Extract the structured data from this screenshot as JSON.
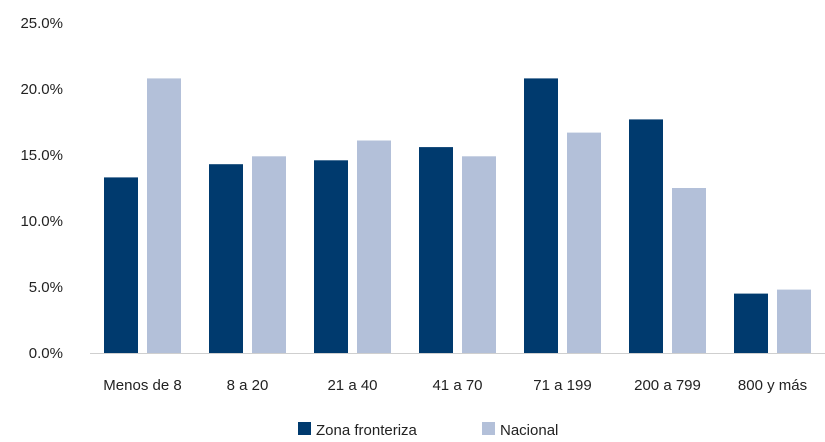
{
  "chart_data": {
    "type": "bar",
    "categories": [
      "Menos de 8",
      "8 a 20",
      "21 a 40",
      "41 a 70",
      "71 a 199",
      "200 a 799",
      "800 y más"
    ],
    "series": [
      {
        "name": "Zona fronteriza",
        "color": "#003a6e",
        "values": [
          13.3,
          14.3,
          14.6,
          15.6,
          20.8,
          17.7,
          4.5
        ]
      },
      {
        "name": "Nacional",
        "color": "#b3c0d9",
        "values": [
          20.8,
          14.9,
          16.1,
          14.9,
          16.7,
          12.5,
          4.8
        ]
      }
    ],
    "y_ticks": [
      "0.0%",
      "5.0%",
      "10.0%",
      "15.0%",
      "20.0%",
      "25.0%"
    ],
    "ylim": [
      0,
      25
    ],
    "grid": false,
    "legend_position": "bottom"
  }
}
